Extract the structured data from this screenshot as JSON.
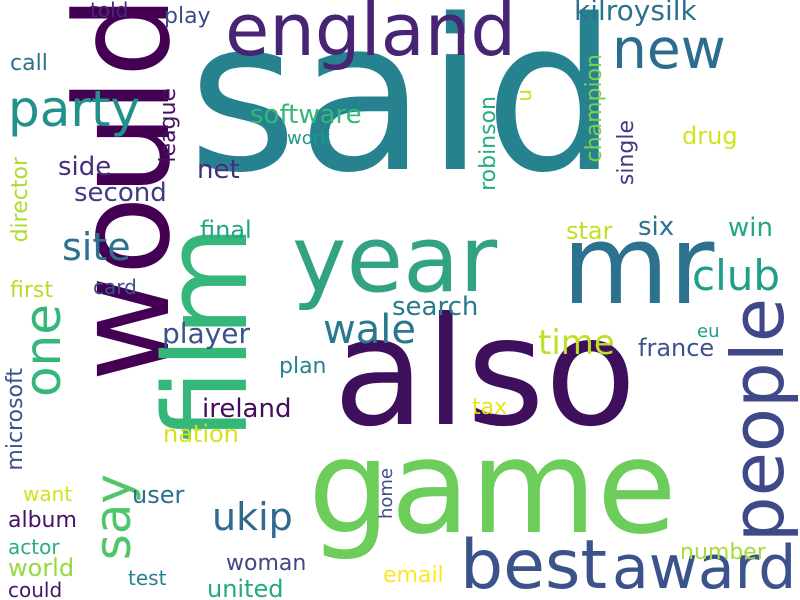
{
  "words": [
    {
      "id": "said",
      "text": "said",
      "color": "#26828e"
    },
    {
      "id": "would",
      "text": "would",
      "color": "#440154"
    },
    {
      "id": "also",
      "text": "also",
      "color": "#3e0f5c"
    },
    {
      "id": "game",
      "text": "game",
      "color": "#6ccd5a"
    },
    {
      "id": "film",
      "text": "film",
      "color": "#35b779"
    },
    {
      "id": "mr",
      "text": "mr",
      "color": "#2c728e"
    },
    {
      "id": "year",
      "text": "year",
      "color": "#31a383"
    },
    {
      "id": "england",
      "text": "england",
      "color": "#482475"
    },
    {
      "id": "people",
      "text": "people",
      "color": "#3f4889"
    },
    {
      "id": "best",
      "text": "best",
      "color": "#3b528b"
    },
    {
      "id": "award",
      "text": "award",
      "color": "#3b528b"
    },
    {
      "id": "new",
      "text": "new",
      "color": "#2c6d8e"
    },
    {
      "id": "one",
      "text": "one",
      "color": "#35b779"
    },
    {
      "id": "party",
      "text": "party",
      "color": "#21918c"
    },
    {
      "id": "say",
      "text": "say",
      "color": "#52c569"
    },
    {
      "id": "wale",
      "text": "wale",
      "color": "#2a788e"
    },
    {
      "id": "club",
      "text": "club",
      "color": "#1f9e89"
    },
    {
      "id": "site",
      "text": "site",
      "color": "#2c728e"
    },
    {
      "id": "ukip",
      "text": "ukip",
      "color": "#31688e"
    },
    {
      "id": "time",
      "text": "time",
      "color": "#bddf26"
    },
    {
      "id": "kilroysilk",
      "text": "kilroysilk",
      "color": "#2c728e"
    },
    {
      "id": "software",
      "text": "software",
      "color": "#35b779"
    },
    {
      "id": "player",
      "text": "player",
      "color": "#3b528b"
    },
    {
      "id": "search",
      "text": "search",
      "color": "#2a788e"
    },
    {
      "id": "second",
      "text": "second",
      "color": "#443a83"
    },
    {
      "id": "side",
      "text": "side",
      "color": "#472d7b"
    },
    {
      "id": "net",
      "text": "net",
      "color": "#472d7b"
    },
    {
      "id": "win",
      "text": "win",
      "color": "#22a884"
    },
    {
      "id": "six",
      "text": "six",
      "color": "#2c728e"
    },
    {
      "id": "ireland",
      "text": "ireland",
      "color": "#460b5e"
    },
    {
      "id": "france",
      "text": "france",
      "color": "#3b528b"
    },
    {
      "id": "league",
      "text": "league",
      "color": "#471063"
    },
    {
      "id": "robinson",
      "text": "robinson",
      "color": "#27ad81"
    },
    {
      "id": "champion",
      "text": "champion",
      "color": "#7ad151"
    },
    {
      "id": "single",
      "text": "single",
      "color": "#443983"
    },
    {
      "id": "director",
      "text": "director",
      "color": "#addc30"
    },
    {
      "id": "microsoft",
      "text": "microsoft",
      "color": "#3b528b"
    },
    {
      "id": "user",
      "text": "user",
      "color": "#2c728e"
    },
    {
      "id": "album",
      "text": "album",
      "color": "#471164"
    },
    {
      "id": "nation",
      "text": "nation",
      "color": "#d8e219"
    },
    {
      "id": "woman",
      "text": "woman",
      "color": "#414487"
    },
    {
      "id": "united",
      "text": "united",
      "color": "#22a884"
    },
    {
      "id": "email",
      "text": "email",
      "color": "#fde725"
    },
    {
      "id": "number",
      "text": "number",
      "color": "#a5db36"
    },
    {
      "id": "world",
      "text": "world",
      "color": "#95d840"
    },
    {
      "id": "star",
      "text": "star",
      "color": "#c2df23"
    },
    {
      "id": "final",
      "text": "final",
      "color": "#21a685"
    },
    {
      "id": "first",
      "text": "first",
      "color": "#b5de2b"
    },
    {
      "id": "drug",
      "text": "drug",
      "color": "#d2e21b"
    },
    {
      "id": "tax",
      "text": "tax",
      "color": "#e5e419"
    },
    {
      "id": "plan",
      "text": "plan",
      "color": "#25858e"
    },
    {
      "id": "call",
      "text": "call",
      "color": "#2d708e"
    },
    {
      "id": "told",
      "text": "told",
      "color": "#482878"
    },
    {
      "id": "play",
      "text": "play",
      "color": "#3e4989"
    },
    {
      "id": "work",
      "text": "work",
      "color": "#1f9a8a"
    },
    {
      "id": "u",
      "text": "u",
      "color": "#c8e020"
    },
    {
      "id": "card",
      "text": "card",
      "color": "#3b528b"
    },
    {
      "id": "eu",
      "text": "eu",
      "color": "#1f9e89"
    },
    {
      "id": "home",
      "text": "home",
      "color": "#3e4c8a"
    },
    {
      "id": "want",
      "text": "want",
      "color": "#d2e21b"
    },
    {
      "id": "actor",
      "text": "actor",
      "color": "#29af7f"
    },
    {
      "id": "test",
      "text": "test",
      "color": "#26828e"
    },
    {
      "id": "could",
      "text": "could",
      "color": "#481467"
    }
  ]
}
